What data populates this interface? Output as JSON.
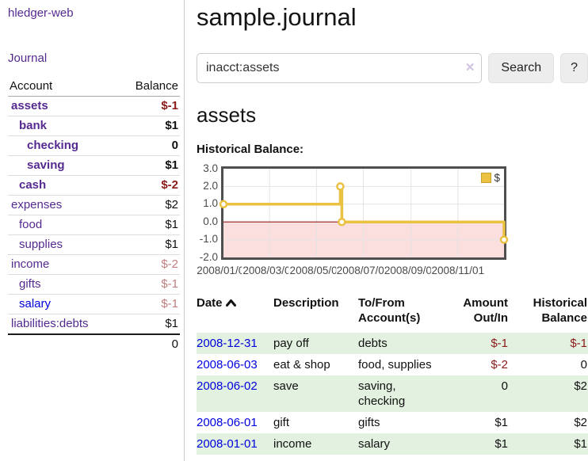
{
  "app": {
    "brand": "hledger-web",
    "nav_journal": "Journal"
  },
  "sidebar": {
    "header": {
      "account": "Account",
      "balance": "Balance"
    },
    "rows": [
      {
        "name": "assets",
        "level": 1,
        "bold": true,
        "link_color": "purple",
        "balance": "$-1",
        "bal_style": "neg-bold"
      },
      {
        "name": "bank",
        "level": 2,
        "bold": true,
        "link_color": "purple",
        "balance": "$1",
        "bal_style": "bold"
      },
      {
        "name": "checking",
        "level": 3,
        "bold": true,
        "link_color": "purple",
        "balance": "0",
        "bal_style": "bold"
      },
      {
        "name": "saving",
        "level": 3,
        "bold": true,
        "link_color": "purple",
        "balance": "$1",
        "bal_style": "bold"
      },
      {
        "name": "cash",
        "level": 2,
        "bold": true,
        "link_color": "purple",
        "balance": "$-2",
        "bal_style": "neg-bold"
      },
      {
        "name": "expenses",
        "level": 1,
        "bold": false,
        "link_color": "purple",
        "balance": "$2",
        "bal_style": "plain"
      },
      {
        "name": "food",
        "level": 2,
        "bold": false,
        "link_color": "purple",
        "balance": "$1",
        "bal_style": "plain"
      },
      {
        "name": "supplies",
        "level": 2,
        "bold": false,
        "link_color": "purple",
        "balance": "$1",
        "bal_style": "plain"
      },
      {
        "name": "income",
        "level": 1,
        "bold": false,
        "link_color": "purple",
        "balance": "$-2",
        "bal_style": "neg-muted"
      },
      {
        "name": "gifts",
        "level": 2,
        "bold": false,
        "link_color": "purple",
        "balance": "$-1",
        "bal_style": "neg-muted"
      },
      {
        "name": "salary",
        "level": 2,
        "bold": false,
        "link_color": "blue",
        "balance": "$-1",
        "bal_style": "neg-muted"
      },
      {
        "name": "liabilities:debts",
        "level": 1,
        "bold": false,
        "link_color": "purple",
        "balance": "$1",
        "bal_style": "plain",
        "section_end": true
      }
    ],
    "total": "0"
  },
  "main": {
    "title": "sample.journal",
    "search": {
      "value": "inacct:assets",
      "clear_icon": "✕",
      "button": "Search",
      "help": "?"
    },
    "section_title": "assets",
    "chart_label": "Historical Balance:"
  },
  "chart_data": {
    "type": "line",
    "step": true,
    "title": "Historical Balance",
    "series": [
      {
        "name": "$",
        "color": "#eac140",
        "points": [
          {
            "x": "2008-01-01",
            "y": 1
          },
          {
            "x": "2008-06-01",
            "y": 2
          },
          {
            "x": "2008-06-03",
            "y": 0
          },
          {
            "x": "2008-12-31",
            "y": -1
          }
        ]
      }
    ],
    "xmin": "2008-01-01",
    "xmax": "2008-12-31",
    "ylim": [
      -2,
      3
    ],
    "ytick_labels": [
      "3.0",
      "2.0",
      "1.0",
      "0.0",
      "-1.0",
      "-2.0"
    ],
    "yticks": [
      3,
      2,
      1,
      0,
      -1,
      -2
    ],
    "xticks": [
      {
        "x": "2008-01-01",
        "label": "2008/01/01"
      },
      {
        "x": "2008-03-01",
        "label": "2008/03/01"
      },
      {
        "x": "2008-05-01",
        "label": "2008/05/01"
      },
      {
        "x": "2008-07-01",
        "label": "2008/07/01"
      },
      {
        "x": "2008-09-01",
        "label": "2008/09/01"
      },
      {
        "x": "2008-11-01",
        "label": "2008/11/01"
      }
    ],
    "grid": true,
    "legend_position": "top-right",
    "negative_region_fill": "#fbdede",
    "zero_line_color": "#9e1a1a"
  },
  "register": {
    "columns": {
      "date": {
        "line1": "Date",
        "line2": ""
      },
      "description": {
        "line1": "Description",
        "line2": ""
      },
      "accounts": {
        "line1": "To/From",
        "line2": "Account(s)"
      },
      "amount": {
        "line1": "Amount",
        "line2": "Out/In"
      },
      "balance": {
        "line1": "Historical",
        "line2": "Balance"
      }
    },
    "rows": [
      {
        "date": "2008-12-31",
        "description": "pay off",
        "accounts": "debts",
        "amount": "$-1",
        "amount_neg": true,
        "balance": "$-1",
        "balance_neg": true
      },
      {
        "date": "2008-06-03",
        "description": "eat & shop",
        "accounts": "food, supplies",
        "amount": "$-2",
        "amount_neg": true,
        "balance": "0",
        "balance_neg": false
      },
      {
        "date": "2008-06-02",
        "description": "save",
        "accounts": "saving, checking",
        "amount": "0",
        "amount_neg": false,
        "balance": "$2",
        "balance_neg": false
      },
      {
        "date": "2008-06-01",
        "description": "gift",
        "accounts": "gifts",
        "amount": "$1",
        "amount_neg": false,
        "balance": "$2",
        "balance_neg": false
      },
      {
        "date": "2008-01-01",
        "description": "income",
        "accounts": "salary",
        "amount": "$1",
        "amount_neg": false,
        "balance": "$1",
        "balance_neg": false
      }
    ]
  },
  "colors": {
    "link_purple": "#552a90",
    "link_blue": "#0000dd",
    "negative_strong": "#8b1a1a",
    "negative_muted": "#c07e7e",
    "row_stripe_green": "#e3f1e0",
    "chart_line_gold": "#eac140",
    "chart_negative_pink": "#fbdede"
  }
}
